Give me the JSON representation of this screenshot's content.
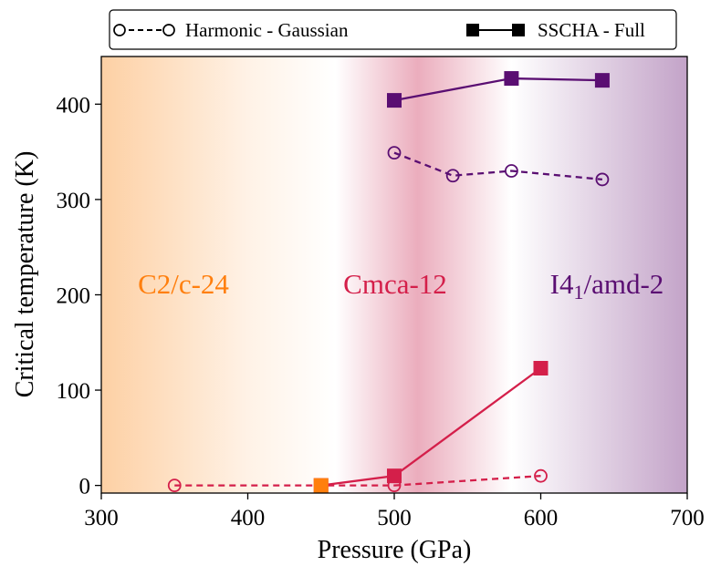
{
  "chart_data": {
    "type": "line",
    "title": "",
    "xlabel": "Pressure (GPa)",
    "ylabel": "Critical temperature (K)",
    "xlim": [
      300,
      700
    ],
    "ylim": [
      -8,
      450
    ],
    "xticks": [
      300,
      400,
      500,
      600,
      700
    ],
    "yticks": [
      0,
      100,
      200,
      300,
      400
    ],
    "grid": false,
    "legend": {
      "placement": "top-outside",
      "entries": [
        {
          "label": "Harmonic - Gaussian",
          "style": "dashed-open-circle"
        },
        {
          "label": "SSCHA - Full",
          "style": "solid-filled-square"
        }
      ]
    },
    "phases": [
      {
        "name": "C2/c-24",
        "label_main": "C2/c-24",
        "label_sub": "",
        "label_after": "",
        "color": "#ff7f0e",
        "band": "#fdd0a4"
      },
      {
        "name": "Cmca-12",
        "label_main": "Cmca-12",
        "label_sub": "",
        "label_after": "",
        "color": "#d41f4a",
        "band": "#ebadbd"
      },
      {
        "name": "I4_1/amd-2",
        "label_main": "I4",
        "label_sub": "1",
        "label_after": "/amd-2",
        "color": "#5a0e72",
        "band": "#c3a3c8"
      }
    ],
    "series": [
      {
        "name": "Harmonic - Gaussian (C2/c-24 / Cmca-12)",
        "style": "dashed-open-circle",
        "color": "#d41f4a",
        "x": [
          350,
          450,
          500,
          600
        ],
        "y": [
          0,
          0,
          0,
          10
        ]
      },
      {
        "name": "SSCHA - Full (Cmca-12)",
        "style": "solid-filled-square",
        "color": "#d41f4a",
        "x": [
          450,
          500,
          600
        ],
        "y": [
          0,
          10,
          123
        ]
      },
      {
        "name": "Harmonic - Gaussian (I4_1/amd-2)",
        "style": "dashed-open-circle",
        "color": "#5a0e72",
        "x": [
          500,
          540,
          580,
          642
        ],
        "y": [
          349,
          325,
          330,
          321
        ]
      },
      {
        "name": "SSCHA - Full (I4_1/amd-2)",
        "style": "solid-filled-square",
        "color": "#5a0e72",
        "x": [
          500,
          580,
          642
        ],
        "y": [
          404,
          427,
          425
        ]
      },
      {
        "name": "SSCHA - Full (C2/c-24)",
        "style": "filled-square",
        "color": "#ff7f0e",
        "x": [
          450
        ],
        "y": [
          0
        ]
      }
    ]
  }
}
